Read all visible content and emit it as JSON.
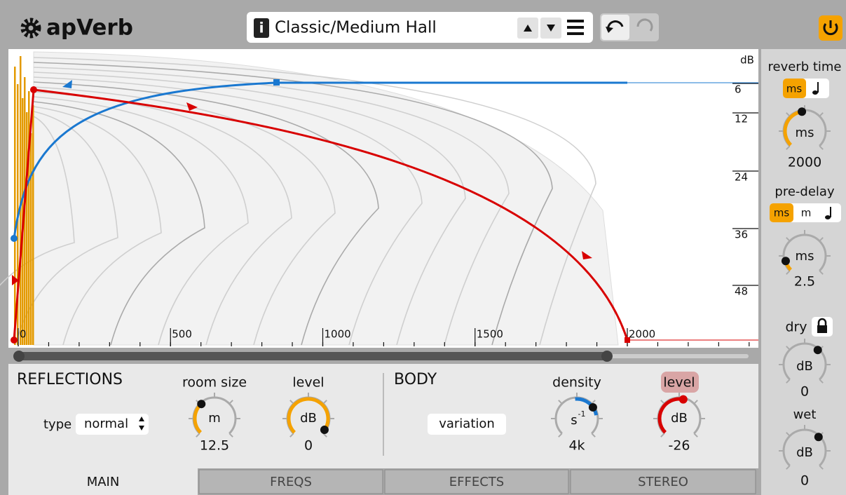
{
  "header": {
    "title": "apVerb",
    "info": "i",
    "preset": "Classic/Medium Hall"
  },
  "graph": {
    "y_unit": "dB",
    "y_labels": [
      6,
      12,
      24,
      36,
      48
    ],
    "x_labels": [
      0,
      500,
      1000,
      1500,
      2000
    ]
  },
  "reflections": {
    "title": "REFLECTIONS",
    "type_label": "type",
    "type_value": "normal",
    "room_size": {
      "label": "room size",
      "unit": "m",
      "value": 12.5
    },
    "level": {
      "label": "level",
      "unit": "dB",
      "value": 0
    }
  },
  "body": {
    "title": "BODY",
    "variation": "variation",
    "density": {
      "label": "density",
      "unit": "s",
      "unit_exp": "-1",
      "value": "4k"
    },
    "level": {
      "label": "level",
      "unit": "dB",
      "value": -26
    }
  },
  "side": {
    "reverb_time": {
      "label": "reverb time",
      "modes": [
        "ms"
      ],
      "unit": "ms",
      "value": 2000
    },
    "pre_delay": {
      "label": "pre-delay",
      "modes": [
        "ms",
        "m"
      ],
      "unit": "ms",
      "value": 2.5
    },
    "dry": {
      "label": "dry",
      "unit": "dB",
      "value": 0
    },
    "wet": {
      "label": "wet",
      "unit": "dB",
      "value": 0
    }
  },
  "tabs": [
    "MAIN",
    "FREQS",
    "EFFECTS",
    "STEREO"
  ]
}
